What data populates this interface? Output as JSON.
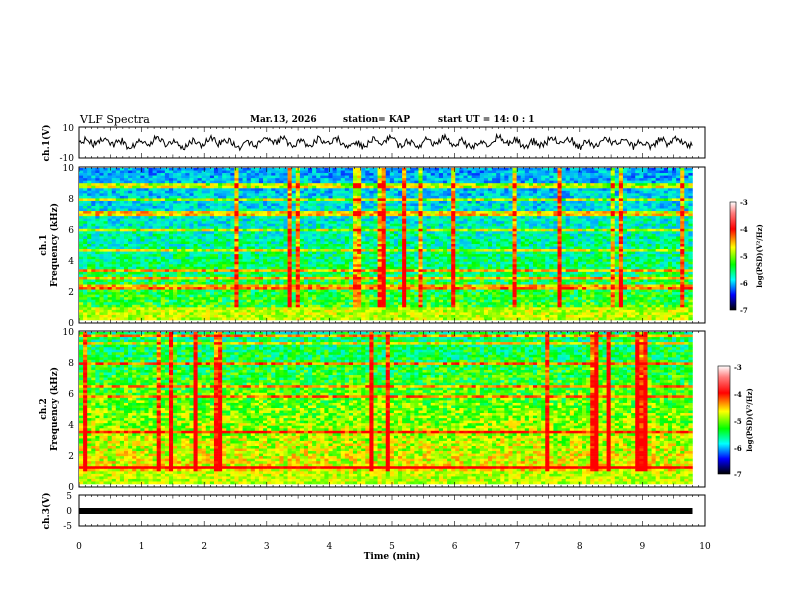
{
  "header": {
    "title": "VLF Spectra",
    "date": "Mar.13, 2026",
    "station": "station= KAP",
    "start": "start  UT  =   14: 0  : 1"
  },
  "chart_data": [
    {
      "type": "line",
      "name": "ch.1 waveform",
      "ylabel": "ch.1(V)",
      "ylim": [
        -10,
        10
      ],
      "yticks": [
        "10",
        "-10"
      ],
      "xlim": [
        0,
        10
      ]
    },
    {
      "type": "heatmap",
      "name": "ch.1 spectrogram",
      "ylabel_line1": "ch.1",
      "ylabel_line2": "Frequency  (kHz)",
      "ylim": [
        0,
        10
      ],
      "yticks": [
        "0",
        "2",
        "4",
        "6",
        "8",
        "10"
      ],
      "xlim": [
        0,
        9.8
      ],
      "colorbar": {
        "label": "log(PSD)(V²/Hz)",
        "range": [
          -7,
          -3
        ],
        "ticks": [
          "-3",
          "-4",
          "-5",
          "-6",
          "-7"
        ]
      }
    },
    {
      "type": "heatmap",
      "name": "ch.2 spectrogram",
      "ylabel_line1": "ch.2",
      "ylabel_line2": "Frequency  (kHz)",
      "ylim": [
        0,
        10
      ],
      "yticks": [
        "0",
        "2",
        "4",
        "6",
        "8",
        "10"
      ],
      "xlim": [
        0,
        9.8
      ],
      "colorbar": {
        "label": "log(PSD)(V²/Hz)",
        "range": [
          -7,
          -3
        ],
        "ticks": [
          "-3",
          "-4",
          "-5",
          "-6",
          "-7"
        ]
      }
    },
    {
      "type": "line",
      "name": "ch.3 waveform",
      "ylabel": "ch.3(V)",
      "ylim": [
        -5,
        5
      ],
      "yticks": [
        "5",
        "0",
        "-5"
      ],
      "level": 0,
      "xlim": [
        0,
        10
      ]
    }
  ],
  "xaxis": {
    "label": "Time  (min)",
    "ticks": [
      "0",
      "1",
      "2",
      "3",
      "4",
      "5",
      "6",
      "7",
      "8",
      "9",
      "10"
    ],
    "range": [
      0,
      10
    ]
  },
  "colors": {
    "palette": [
      "#ffffff",
      "#ff0000",
      "#ffff00",
      "#00ff00",
      "#00ffff",
      "#0000ff",
      "#000000"
    ]
  }
}
